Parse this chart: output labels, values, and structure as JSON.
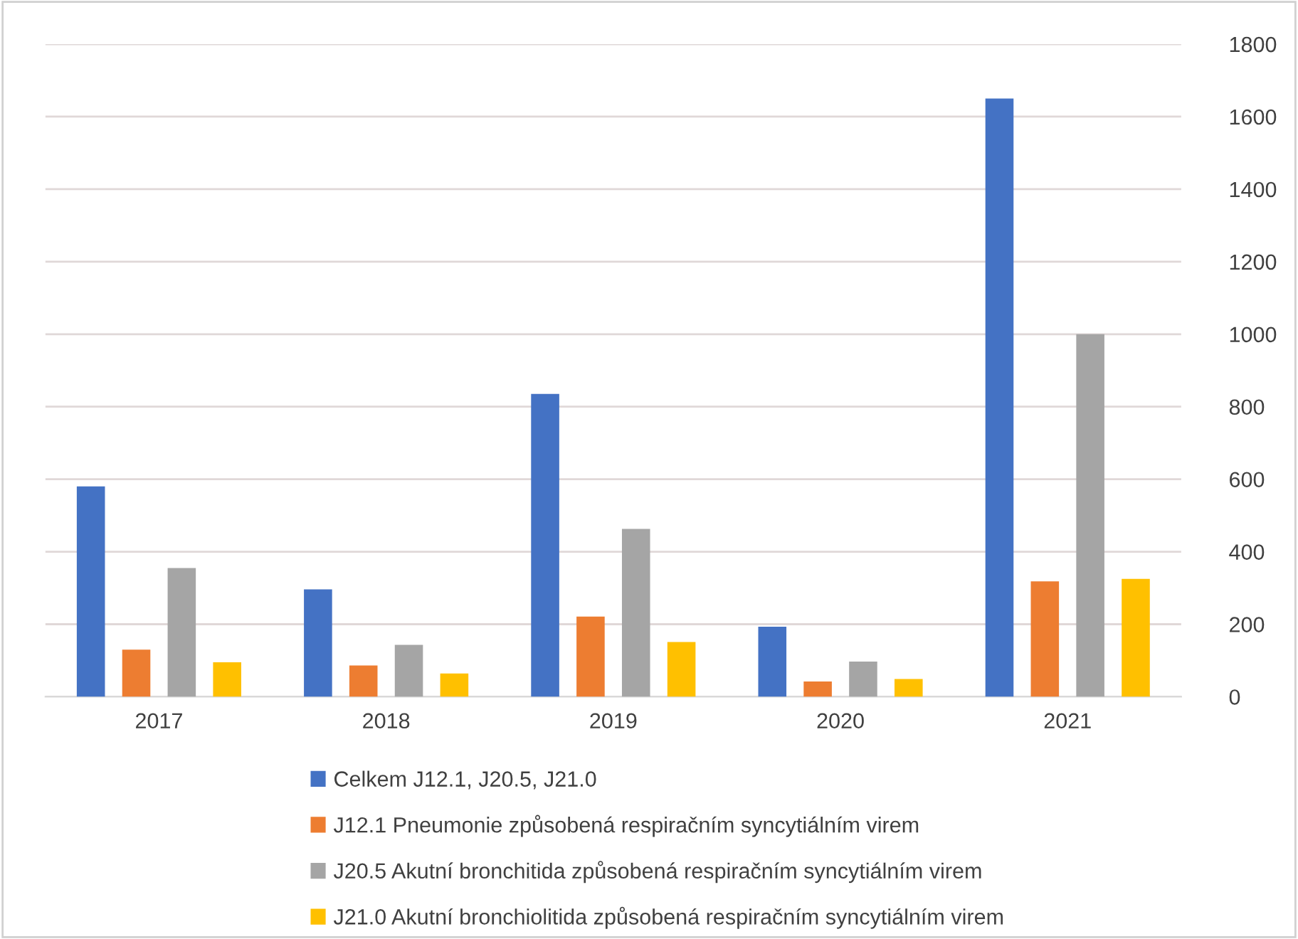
{
  "chart_data": {
    "type": "bar",
    "categories": [
      "2017",
      "2018",
      "2019",
      "2020",
      "2021"
    ],
    "series": [
      {
        "name": "Celkem J12.1, J20.5, J21.0",
        "color": "#4472c4",
        "values": [
          580,
          296,
          835,
          193,
          1650
        ]
      },
      {
        "name": "J12.1 Pneumonie způsobená respiračním syncytiálním virem",
        "color": "#ed7d31",
        "values": [
          130,
          86,
          221,
          42,
          318
        ]
      },
      {
        "name": "J20.5 Akutní bronchitida způsobená respiračním syncytiálním virem",
        "color": "#a5a5a5",
        "values": [
          355,
          143,
          463,
          97,
          1000
        ]
      },
      {
        "name": "J21.0 Akutní bronchiolitida způsobená respiračním syncytiálním virem",
        "color": "#ffc000",
        "values": [
          95,
          64,
          151,
          49,
          325
        ]
      }
    ],
    "ylim": [
      0,
      1800
    ],
    "yticks": [
      0,
      200,
      400,
      600,
      800,
      1000,
      1200,
      1400,
      1600,
      1800
    ],
    "grid": "y",
    "legend": "bottom"
  }
}
